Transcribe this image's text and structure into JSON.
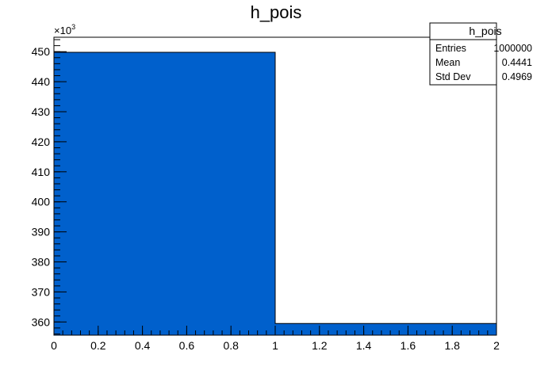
{
  "chart_data": {
    "type": "bar",
    "title": "h_pois",
    "x_bin_edges": [
      0,
      1,
      2
    ],
    "values": [
      449800,
      359500
    ],
    "xlim": [
      0,
      2
    ],
    "ylim": [
      355600,
      454800
    ],
    "y_multiplier_label": "×10",
    "y_multiplier_exponent": "3",
    "x_ticks": [
      0,
      0.2,
      0.4,
      0.6,
      0.8,
      1,
      1.2,
      1.4,
      1.6,
      1.8,
      2
    ],
    "x_tick_labels": [
      "0",
      "0.2",
      "0.4",
      "0.6",
      "0.8",
      "1",
      "1.2",
      "1.4",
      "1.6",
      "1.8",
      "2"
    ],
    "y_ticks": [
      360000,
      370000,
      380000,
      390000,
      400000,
      410000,
      420000,
      430000,
      440000,
      450000
    ],
    "y_tick_labels": [
      "360",
      "370",
      "380",
      "390",
      "400",
      "410",
      "420",
      "430",
      "440",
      "450"
    ],
    "grid": false,
    "fill_color": "#0060cc",
    "stats_box": {
      "title": "h_pois",
      "rows": [
        {
          "label": "Entries",
          "value": "1000000"
        },
        {
          "label": "Mean",
          "value": "0.4441"
        },
        {
          "label": "Std Dev",
          "value": "0.4969"
        }
      ]
    }
  }
}
